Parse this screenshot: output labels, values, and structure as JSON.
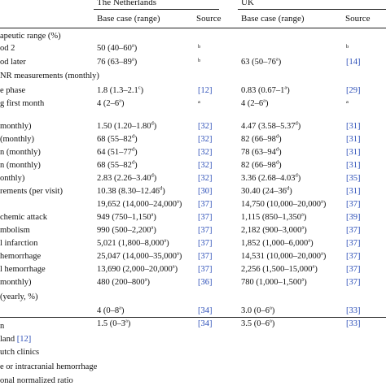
{
  "header": {
    "country_nl": "The Netherlands",
    "country_uk": "UK",
    "base_case": "Base case (range)",
    "source": "Source"
  },
  "rows": [
    {
      "label": "apeutic range (%)",
      "nl_value": "",
      "nl_sup": "",
      "nl_source": "",
      "uk_value": "",
      "uk_sup": "",
      "uk_source": ""
    },
    {
      "label": "od 2",
      "nl_value": "50 (40–60",
      "nl_sup": "a",
      "nl_value_end": ")",
      "nl_source": "b",
      "nl_source_kind": "sup",
      "uk_value": "",
      "uk_sup": "",
      "uk_value_end": "",
      "uk_source": "b",
      "uk_source_kind": "sup"
    },
    {
      "label": "od later",
      "nl_value": "76 (63–89",
      "nl_sup": "a",
      "nl_value_end": ")",
      "nl_source": "b",
      "nl_source_kind": "sup",
      "uk_value": "63 (50–76",
      "uk_sup": "a",
      "uk_value_end": ")",
      "uk_source": "[14]",
      "uk_source_kind": "ref"
    },
    {
      "label": "NR measurements (monthly)",
      "nl_value": "",
      "nl_sup": "",
      "nl_source": "",
      "uk_value": "",
      "uk_sup": "",
      "uk_source": ""
    },
    {
      "label": "e phase",
      "nl_value": "1.8 (1.3–2.1",
      "nl_sup": "c",
      "nl_value_end": ")",
      "nl_source": "[12]",
      "nl_source_kind": "ref",
      "uk_value": "0.83 (0.67–1",
      "uk_sup": "a",
      "uk_value_end": ")",
      "uk_source": "[29]",
      "uk_source_kind": "ref"
    },
    {
      "label": "g first month",
      "nl_value": "4 (2–6",
      "nl_sup": "a",
      "nl_value_end": ")",
      "nl_source": "a",
      "nl_source_kind": "sup",
      "uk_value": "4 (2–6",
      "uk_sup": "a",
      "uk_value_end": ")",
      "uk_source": "a",
      "uk_source_kind": "sup"
    },
    {
      "label": "",
      "nl_value": "",
      "nl_sup": "",
      "nl_source": "",
      "uk_value": "",
      "uk_sup": "",
      "uk_source": ""
    },
    {
      "label": "monthly)",
      "nl_value": "1.50 (1.20–1.80",
      "nl_sup": "d",
      "nl_value_end": ")",
      "nl_source": "[32]",
      "nl_source_kind": "ref",
      "uk_value": "4.47 (3.58–5.37",
      "uk_sup": "d",
      "uk_value_end": ")",
      "uk_source": "[31]",
      "uk_source_kind": "ref"
    },
    {
      "label": "(monthly)",
      "nl_value": "68 (55–82",
      "nl_sup": "d",
      "nl_value_end": ")",
      "nl_source": "[32]",
      "nl_source_kind": "ref",
      "uk_value": "82 (66–98",
      "uk_sup": "d",
      "uk_value_end": ")",
      "uk_source": "[31]",
      "uk_source_kind": "ref"
    },
    {
      "label": "n (monthly)",
      "nl_value": "64 (51–77",
      "nl_sup": "d",
      "nl_value_end": ")",
      "nl_source": "[32]",
      "nl_source_kind": "ref",
      "uk_value": "78 (63–94",
      "uk_sup": "d",
      "uk_value_end": ")",
      "uk_source": "[31]",
      "uk_source_kind": "ref"
    },
    {
      "label": "n (monthly)",
      "nl_value": "68 (55–82",
      "nl_sup": "d",
      "nl_value_end": ")",
      "nl_source": "[32]",
      "nl_source_kind": "ref",
      "uk_value": "82 (66–98",
      "uk_sup": "d",
      "uk_value_end": ")",
      "uk_source": "[31]",
      "uk_source_kind": "ref"
    },
    {
      "label": "onthly)",
      "nl_value": "2.83 (2.26–3.40",
      "nl_sup": "d",
      "nl_value_end": ")",
      "nl_source": "[32]",
      "nl_source_kind": "ref",
      "uk_value": "3.36 (2.68–4.03",
      "uk_sup": "d",
      "uk_value_end": ")",
      "uk_source": "[35]",
      "uk_source_kind": "ref"
    },
    {
      "label": "rements (per visit)",
      "nl_value": "10.38 (8.30–12.46",
      "nl_sup": "d",
      "nl_value_end": ")",
      "nl_source": "[30]",
      "nl_source_kind": "ref",
      "uk_value": "30.40 (24–36",
      "uk_sup": "d",
      "uk_value_end": ")",
      "uk_source": "[31]",
      "uk_source_kind": "ref"
    },
    {
      "label": "",
      "nl_value": "19,652 (14,000–24,000",
      "nl_sup": "a",
      "nl_value_end": ")",
      "nl_source": "[37]",
      "nl_source_kind": "ref",
      "uk_value": "14,750 (10,000–20,000",
      "uk_sup": "a",
      "uk_value_end": ")",
      "uk_source": "[37]",
      "uk_source_kind": "ref"
    },
    {
      "label": "chemic attack",
      "nl_value": "949 (750–1,150",
      "nl_sup": "a",
      "nl_value_end": ")",
      "nl_source": "[37]",
      "nl_source_kind": "ref",
      "uk_value": "1,115 (850–1,350",
      "uk_sup": "a",
      "uk_value_end": ")",
      "uk_source": "[39]",
      "uk_source_kind": "ref"
    },
    {
      "label": "mbolism",
      "nl_value": "990 (500–2,200",
      "nl_sup": "a",
      "nl_value_end": ")",
      "nl_source": "[37]",
      "nl_source_kind": "ref",
      "uk_value": "2,182 (900–3,000",
      "uk_sup": "a",
      "uk_value_end": ")",
      "uk_source": "[37]",
      "uk_source_kind": "ref"
    },
    {
      "label": "l infarction",
      "nl_value": "5,021 (1,800–8,000",
      "nl_sup": "a",
      "nl_value_end": ")",
      "nl_source": "[37]",
      "nl_source_kind": "ref",
      "uk_value": "1,852 (1,000–6,000",
      "uk_sup": "a",
      "uk_value_end": ")",
      "uk_source": "[37]",
      "uk_source_kind": "ref"
    },
    {
      "label": "hemorrhage",
      "nl_value": "25,047 (14,000–35,000",
      "nl_sup": "a",
      "nl_value_end": ")",
      "nl_source": "[37]",
      "nl_source_kind": "ref",
      "uk_value": "14,531 (10,000–20,000",
      "uk_sup": "a",
      "uk_value_end": ")",
      "uk_source": "[37]",
      "uk_source_kind": "ref"
    },
    {
      "label": "l hemorrhage",
      "nl_value": "13,690 (2,000–20,000",
      "nl_sup": "a",
      "nl_value_end": ")",
      "nl_source": "[37]",
      "nl_source_kind": "ref",
      "uk_value": "2,256 (1,500–15,000",
      "uk_sup": "a",
      "uk_value_end": ")",
      "uk_source": "[37]",
      "uk_source_kind": "ref"
    },
    {
      "label": "monthly)",
      "nl_value": "480 (200–800",
      "nl_sup": "a",
      "nl_value_end": ")",
      "nl_source": "[36]",
      "nl_source_kind": "ref",
      "uk_value": "780 (1,000–1,500",
      "uk_sup": "a",
      "uk_value_end": ")",
      "uk_source": "[37]",
      "uk_source_kind": "ref"
    },
    {
      "label": "(yearly, %)",
      "nl_value": "",
      "nl_sup": "",
      "nl_source": "",
      "uk_value": "",
      "uk_sup": "",
      "uk_source": ""
    },
    {
      "label": "",
      "nl_value": "4 (0–8",
      "nl_sup": "a",
      "nl_value_end": ")",
      "nl_source": "[34]",
      "nl_source_kind": "ref",
      "uk_value": "3.0 (0–6",
      "uk_sup": "a",
      "uk_value_end": ")",
      "uk_source": "[33]",
      "uk_source_kind": "ref"
    },
    {
      "label": "",
      "nl_value": "1.5 (0–3",
      "nl_sup": "a",
      "nl_value_end": ")",
      "nl_source": "[34]",
      "nl_source_kind": "ref",
      "uk_value": "3.5 (0–6",
      "uk_sup": "a",
      "uk_value_end": ")",
      "uk_source": "[33]",
      "uk_source_kind": "ref"
    }
  ],
  "footnotes": [
    {
      "text": "n",
      "ref": ""
    },
    {
      "text": "land ",
      "ref": "[12]"
    },
    {
      "text": "utch clinics",
      "ref": ""
    },
    {
      "text": "",
      "ref": ""
    },
    {
      "text": "e or intracranial hemorrhage",
      "ref": ""
    },
    {
      "text": "onal normalized ratio",
      "ref": ""
    }
  ]
}
